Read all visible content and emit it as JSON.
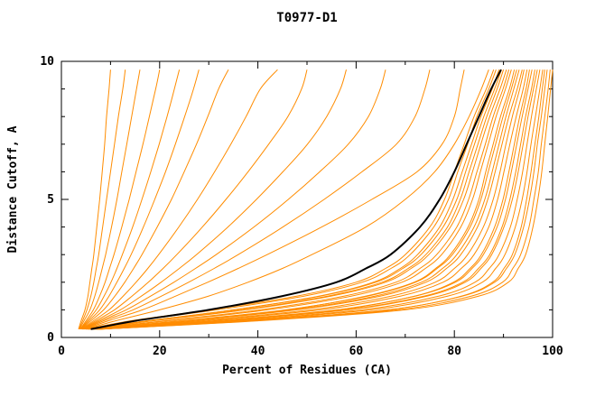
{
  "title": "T0977-D1",
  "chart_data": {
    "type": "line",
    "title": "T0977-D1",
    "xlabel": "Percent of Residues (CA)",
    "ylabel": "Distance Cutoff, A",
    "xlim": [
      0,
      100
    ],
    "ylim": [
      0,
      10
    ],
    "x_major_ticks": [
      0,
      20,
      40,
      60,
      80,
      100
    ],
    "x_minor_ticks": [
      10,
      30,
      50,
      70,
      90
    ],
    "y_major_ticks": [
      0,
      5,
      10
    ],
    "y_minor_ticks": [
      1,
      2,
      3,
      4,
      6,
      7,
      8,
      9
    ],
    "grid": false,
    "legend": "none",
    "colors": {
      "model": "#ff8c00",
      "highlight": "#000000",
      "frame": "#000000"
    },
    "y_samples": [
      0.3,
      0.6,
      1,
      1.5,
      2,
      2.5,
      3,
      4,
      5,
      6,
      7,
      8,
      9,
      9.7
    ],
    "series": [
      {
        "name": "orange-01",
        "color": "#ff8c00",
        "emphasis": false,
        "x": [
          3.5,
          4,
          4.8,
          5.4,
          5.8,
          6.2,
          6.6,
          7.2,
          7.8,
          8.3,
          8.8,
          9.2,
          9.7,
          10
        ]
      },
      {
        "name": "orange-02",
        "color": "#ff8c00",
        "emphasis": false,
        "x": [
          3.6,
          4.3,
          5.2,
          6,
          6.6,
          7.1,
          7.6,
          8.4,
          9.2,
          10,
          10.8,
          11.6,
          12.5,
          13
        ]
      },
      {
        "name": "orange-03",
        "color": "#ff8c00",
        "emphasis": false,
        "x": [
          3.7,
          4.6,
          5.8,
          6.8,
          7.6,
          8.3,
          9,
          10.2,
          11.3,
          12.3,
          13.3,
          14.3,
          15.3,
          16
        ]
      },
      {
        "name": "orange-04",
        "color": "#ff8c00",
        "emphasis": false,
        "x": [
          3.8,
          5,
          6.5,
          7.8,
          8.9,
          9.8,
          10.7,
          12.3,
          13.8,
          15.2,
          16.6,
          17.9,
          19.2,
          20
        ]
      },
      {
        "name": "orange-05",
        "color": "#ff8c00",
        "emphasis": false,
        "x": [
          3.9,
          5.3,
          7.1,
          8.7,
          10.1,
          11.3,
          12.4,
          14.5,
          16.4,
          18.2,
          19.9,
          21.5,
          23,
          24
        ]
      },
      {
        "name": "orange-06",
        "color": "#ff8c00",
        "emphasis": false,
        "x": [
          4,
          5.6,
          7.8,
          9.7,
          11.3,
          12.8,
          14.2,
          16.7,
          19,
          21.2,
          23.2,
          25.1,
          26.9,
          28
        ]
      },
      {
        "name": "orange-07",
        "color": "#ff8c00",
        "emphasis": false,
        "x": [
          4.1,
          6,
          8.6,
          10.9,
          12.9,
          14.7,
          16.4,
          19.5,
          22.4,
          25,
          27.5,
          29.8,
          32,
          34
        ]
      },
      {
        "name": "orange-08",
        "color": "#ff8c00",
        "emphasis": false,
        "x": [
          4.2,
          6.5,
          9.7,
          12.6,
          15.2,
          17.6,
          19.8,
          23.9,
          27.7,
          31.2,
          34.5,
          37.6,
          40.5,
          44
        ]
      },
      {
        "name": "orange-09",
        "color": "#ff8c00",
        "emphasis": false,
        "x": [
          4.3,
          7,
          10.8,
          14.4,
          17.7,
          20.7,
          23.5,
          28.7,
          33.5,
          38,
          42.2,
          46.1,
          48.9,
          50
        ]
      },
      {
        "name": "orange-10",
        "color": "#ff8c00",
        "emphasis": false,
        "x": [
          4.4,
          7.5,
          12,
          16.3,
          20.3,
          24,
          27.5,
          33.9,
          39.7,
          45.1,
          50.1,
          54,
          56.8,
          58
        ]
      },
      {
        "name": "orange-11",
        "color": "#ff8c00",
        "emphasis": false,
        "x": [
          4.5,
          8,
          13.2,
          18.2,
          22.9,
          27.3,
          31.5,
          39.2,
          46.2,
          52.6,
          58.4,
          62.5,
          64.9,
          66
        ]
      },
      {
        "name": "orange-12",
        "color": "#ff8c00",
        "emphasis": false,
        "x": [
          4.6,
          8.6,
          14.6,
          20.4,
          25.9,
          31.1,
          36,
          45.1,
          53.5,
          61.2,
          68.2,
          72,
          74,
          75
        ]
      },
      {
        "name": "orange-13",
        "color": "#ff8c00",
        "emphasis": false,
        "x": [
          4.8,
          9.5,
          16.5,
          23.3,
          29.8,
          36,
          41.9,
          53,
          63.2,
          72.4,
          77.5,
          80,
          81.2,
          82
        ]
      },
      {
        "name": "orange-14",
        "color": "#ff8c00",
        "emphasis": false,
        "x": [
          5,
          11,
          20,
          30,
          38,
          45,
          51,
          62,
          70,
          76,
          80,
          83,
          85.5,
          87
        ]
      },
      {
        "name": "orange-15",
        "color": "#ff8c00",
        "emphasis": false,
        "x": [
          5,
          14,
          30,
          48,
          60,
          66,
          70,
          75,
          78,
          80,
          82,
          84,
          86.5,
          88
        ]
      },
      {
        "name": "orange-16",
        "color": "#ff8c00",
        "emphasis": false,
        "x": [
          5.1,
          15,
          31.6,
          49.5,
          61.2,
          67.1,
          71,
          75.8,
          78.8,
          80.7,
          82.7,
          84.6,
          87,
          88.5
        ]
      },
      {
        "name": "orange-17",
        "color": "#ff8c00",
        "emphasis": false,
        "x": [
          5.3,
          17.5,
          35,
          52.5,
          63.5,
          69,
          72.5,
          77,
          79.7,
          81.6,
          83.5,
          85.4,
          87.7,
          89.1
        ]
      },
      {
        "name": "orange-18",
        "color": "#ff8c00",
        "emphasis": false,
        "x": [
          5.4,
          17.4,
          35.2,
          52.8,
          64,
          69.5,
          73.2,
          77.7,
          80.5,
          82.3,
          84.1,
          86,
          88.2,
          89.6
        ]
      },
      {
        "name": "orange-19",
        "color": "#ff8c00",
        "emphasis": false,
        "x": [
          5.5,
          18.4,
          36.8,
          54.3,
          65.3,
          70.6,
          74.2,
          78.6,
          81.2,
          83,
          84.8,
          86.6,
          88.7,
          90
        ]
      },
      {
        "name": "orange-20",
        "color": "#ff8c00",
        "emphasis": false,
        "x": [
          5.7,
          18.5,
          37.5,
          55,
          66,
          71.2,
          74.8,
          79.2,
          81.9,
          83.7,
          85.4,
          87.2,
          89.3,
          90.6
        ]
      },
      {
        "name": "orange-21",
        "color": "#ff8c00",
        "emphasis": false,
        "x": [
          5.8,
          20.8,
          40.4,
          57.6,
          68.1,
          73,
          76.4,
          80.5,
          82.9,
          84.6,
          86.3,
          87.9,
          89.9,
          91.1
        ]
      },
      {
        "name": "orange-22",
        "color": "#ff8c00",
        "emphasis": false,
        "x": [
          5.9,
          21.8,
          42,
          59.1,
          69.3,
          74.1,
          77.4,
          81.3,
          83.7,
          85.3,
          86.9,
          88.5,
          90.4,
          91.6
        ]
      },
      {
        "name": "orange-23",
        "color": "#ff8c00",
        "emphasis": false,
        "x": [
          6.1,
          24.5,
          46,
          62,
          71.8,
          76.2,
          79.2,
          82.8,
          85,
          86.4,
          87.9,
          89.4,
          91.2,
          92.2
        ]
      },
      {
        "name": "orange-24",
        "color": "#ff8c00",
        "emphasis": false,
        "x": [
          6.2,
          24.1,
          45.6,
          62.4,
          72.1,
          76.5,
          79.6,
          83.2,
          85.4,
          86.9,
          88.4,
          89.9,
          91.6,
          92.7
        ]
      },
      {
        "name": "orange-25",
        "color": "#ff8c00",
        "emphasis": false,
        "x": [
          6.3,
          25.2,
          47.2,
          63.9,
          73.3,
          77.6,
          80.5,
          84,
          86.2,
          87.7,
          89.1,
          90.5,
          92.1,
          93.2
        ]
      },
      {
        "name": "orange-26",
        "color": "#ff8c00",
        "emphasis": false,
        "x": [
          6.4,
          25.5,
          48,
          65,
          74.2,
          78.4,
          81.3,
          84.7,
          86.8,
          88.3,
          89.7,
          91.1,
          92.8,
          93.8
        ]
      },
      {
        "name": "orange-27",
        "color": "#ff8c00",
        "emphasis": false,
        "x": [
          6.6,
          27.5,
          50.8,
          67.2,
          76.1,
          80,
          82.7,
          85.9,
          87.9,
          89.3,
          90.5,
          91.8,
          93.3,
          94.2
        ]
      },
      {
        "name": "orange-28",
        "color": "#ff8c00",
        "emphasis": false,
        "x": [
          6.7,
          28.8,
          52.8,
          69.1,
          77.7,
          81.4,
          84,
          87,
          88.8,
          90.1,
          91.3,
          92.6,
          94,
          94.8
        ]
      },
      {
        "name": "orange-29",
        "color": "#ff8c00",
        "emphasis": false,
        "x": [
          6.8,
          31.5,
          56.5,
          72,
          79.8,
          83.2,
          85.5,
          88.2,
          89.9,
          91.1,
          92.2,
          93.3,
          94.6,
          95.3
        ]
      },
      {
        "name": "orange-30",
        "color": "#ff8c00",
        "emphasis": false,
        "x": [
          7,
          30.9,
          56,
          72.1,
          80.2,
          83.6,
          85.9,
          88.7,
          90.4,
          91.6,
          92.7,
          93.8,
          95,
          95.8
        ]
      },
      {
        "name": "orange-31",
        "color": "#ff8c00",
        "emphasis": false,
        "x": [
          7.1,
          32.2,
          58,
          73.9,
          81.7,
          84.9,
          87.2,
          89.7,
          91.3,
          92.5,
          93.5,
          94.5,
          95.7,
          96.4
        ]
      },
      {
        "name": "orange-32",
        "color": "#ff8c00",
        "emphasis": false,
        "x": [
          7.2,
          32,
          58.5,
          74.5,
          82.2,
          85.4,
          87.6,
          90.1,
          91.8,
          93,
          94,
          95,
          96.1,
          96.9
        ]
      },
      {
        "name": "orange-33",
        "color": "#ff8c00",
        "emphasis": false,
        "x": [
          7.3,
          34.3,
          61.2,
          76.9,
          84.2,
          87.1,
          89.1,
          91.4,
          92.8,
          93.9,
          94.8,
          95.7,
          96.7,
          97.4
        ]
      },
      {
        "name": "orange-34",
        "color": "#ff8c00",
        "emphasis": false,
        "x": [
          7.5,
          35.6,
          63.2,
          78.7,
          85.7,
          88.4,
          90.3,
          92.4,
          93.8,
          94.8,
          95.6,
          96.5,
          97.4,
          98
        ]
      },
      {
        "name": "orange-35",
        "color": "#ff8c00",
        "emphasis": false,
        "x": [
          7.6,
          38,
          66.5,
          81.5,
          87.8,
          90.1,
          91.8,
          93.6,
          94.7,
          95.6,
          96.4,
          97.2,
          97.9,
          98.4
        ]
      },
      {
        "name": "orange-36",
        "color": "#ff8c00",
        "emphasis": false,
        "x": [
          7.7,
          37.7,
          66.4,
          81.7,
          88.2,
          90.6,
          92.3,
          94.1,
          95.3,
          96.2,
          96.9,
          97.7,
          98.4,
          98.9
        ]
      },
      {
        "name": "orange-37",
        "color": "#ff8c00",
        "emphasis": false,
        "x": [
          7.9,
          39,
          68.4,
          83.5,
          89.8,
          91.9,
          93.5,
          95.2,
          96.2,
          97.1,
          97.7,
          98.4,
          99.1,
          99.5
        ]
      },
      {
        "name": "orange-38",
        "color": "#ff8c00",
        "emphasis": false,
        "x": [
          8,
          40,
          70,
          85,
          91,
          93,
          94.5,
          96,
          97,
          97.8,
          98.4,
          99,
          99.6,
          100
        ]
      },
      {
        "name": "black",
        "color": "#000000",
        "emphasis": true,
        "x": [
          6,
          15,
          30,
          45,
          56,
          62,
          67,
          73,
          77,
          80,
          82.5,
          85,
          87.5,
          89.5
        ]
      }
    ]
  }
}
